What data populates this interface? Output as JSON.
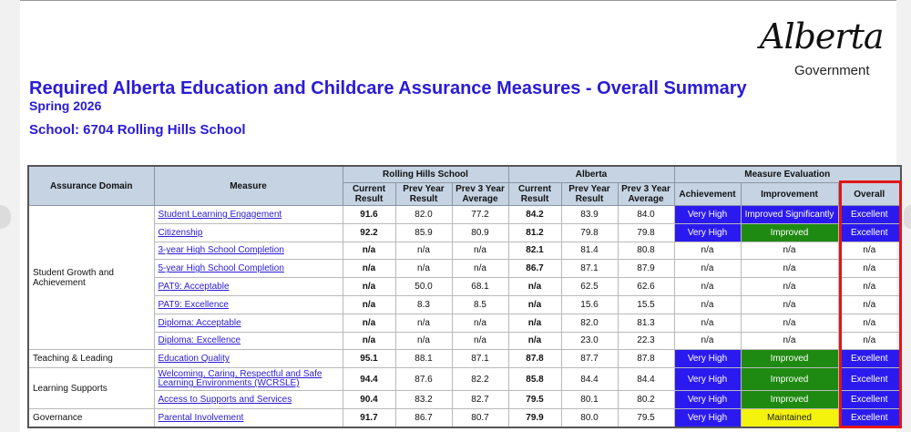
{
  "logo": {
    "script": "Alberta",
    "subtitle": "Government"
  },
  "title": "Required Alberta Education and Childcare Assurance Measures - Overall Summary",
  "subtitle": "Spring 2026",
  "school": "School: 6704 Rolling Hills School",
  "headers": {
    "assurance_domain": "Assurance Domain",
    "measure": "Measure",
    "school_group": "Rolling Hills School",
    "alberta_group": "Alberta",
    "evaluation_group": "Measure Evaluation",
    "current": "Current Result",
    "prev_year": "Prev Year Result",
    "prev_3yr": "Prev 3 Year Average",
    "achievement": "Achievement",
    "improvement": "Improvement",
    "overall": "Overall"
  },
  "domains": {
    "student_growth": "Student Growth and Achievement",
    "teaching": "Teaching & Leading",
    "learning_supports": "Learning Supports",
    "governance": "Governance"
  },
  "rows": [
    {
      "measure": "Student Learning Engagement",
      "s_cur": "91.6",
      "s_prev": "82.0",
      "s_3yr": "77.2",
      "a_cur": "84.2",
      "a_prev": "83.9",
      "a_3yr": "84.0",
      "achievement": "Very High",
      "improvement": "Improved Significantly",
      "overall": "Excellent"
    },
    {
      "measure": "Citizenship",
      "s_cur": "92.2",
      "s_prev": "85.9",
      "s_3yr": "80.9",
      "a_cur": "81.2",
      "a_prev": "79.8",
      "a_3yr": "79.8",
      "achievement": "Very High",
      "improvement": "Improved",
      "overall": "Excellent"
    },
    {
      "measure": "3-year High School Completion",
      "s_cur": "n/a",
      "s_prev": "n/a",
      "s_3yr": "n/a",
      "a_cur": "82.1",
      "a_prev": "81.4",
      "a_3yr": "80.8",
      "achievement": "n/a",
      "improvement": "n/a",
      "overall": "n/a"
    },
    {
      "measure": "5-year High School Completion",
      "s_cur": "n/a",
      "s_prev": "n/a",
      "s_3yr": "n/a",
      "a_cur": "86.7",
      "a_prev": "87.1",
      "a_3yr": "87.9",
      "achievement": "n/a",
      "improvement": "n/a",
      "overall": "n/a"
    },
    {
      "measure": "PAT9: Acceptable",
      "s_cur": "n/a",
      "s_prev": "50.0",
      "s_3yr": "68.1",
      "a_cur": "n/a",
      "a_prev": "62.5",
      "a_3yr": "62.6",
      "achievement": "n/a",
      "improvement": "n/a",
      "overall": "n/a"
    },
    {
      "measure": "PAT9: Excellence",
      "s_cur": "n/a",
      "s_prev": "8.3",
      "s_3yr": "8.5",
      "a_cur": "n/a",
      "a_prev": "15.6",
      "a_3yr": "15.5",
      "achievement": "n/a",
      "improvement": "n/a",
      "overall": "n/a"
    },
    {
      "measure": "Diploma: Acceptable",
      "s_cur": "n/a",
      "s_prev": "n/a",
      "s_3yr": "n/a",
      "a_cur": "n/a",
      "a_prev": "82.0",
      "a_3yr": "81.3",
      "achievement": "n/a",
      "improvement": "n/a",
      "overall": "n/a"
    },
    {
      "measure": "Diploma: Excellence",
      "s_cur": "n/a",
      "s_prev": "n/a",
      "s_3yr": "n/a",
      "a_cur": "n/a",
      "a_prev": "23.0",
      "a_3yr": "22.3",
      "achievement": "n/a",
      "improvement": "n/a",
      "overall": "n/a"
    },
    {
      "measure": "Education Quality",
      "s_cur": "95.1",
      "s_prev": "88.1",
      "s_3yr": "87.1",
      "a_cur": "87.8",
      "a_prev": "87.7",
      "a_3yr": "87.8",
      "achievement": "Very High",
      "improvement": "Improved",
      "overall": "Excellent"
    },
    {
      "measure": "Welcoming, Caring, Respectful and Safe Learning Environments (WCRSLE)",
      "s_cur": "94.4",
      "s_prev": "87.6",
      "s_3yr": "82.2",
      "a_cur": "85.8",
      "a_prev": "84.4",
      "a_3yr": "84.4",
      "achievement": "Very High",
      "improvement": "Improved",
      "overall": "Excellent"
    },
    {
      "measure": "Access to Supports and Services",
      "s_cur": "90.4",
      "s_prev": "83.2",
      "s_3yr": "82.7",
      "a_cur": "79.5",
      "a_prev": "80.1",
      "a_3yr": "80.2",
      "achievement": "Very High",
      "improvement": "Improved",
      "overall": "Excellent"
    },
    {
      "measure": "Parental Involvement",
      "s_cur": "91.7",
      "s_prev": "86.7",
      "s_3yr": "80.7",
      "a_cur": "79.9",
      "a_prev": "80.0",
      "a_3yr": "79.5",
      "achievement": "Very High",
      "improvement": "Maintained",
      "overall": "Excellent"
    }
  ],
  "colors": {
    "title": "#2a1bd6",
    "very_high": "#2b1af0",
    "improved": "#1f8a12",
    "maintained": "#f3f30e",
    "excellent": "#2b1af0",
    "highlight_box": "#e01616"
  }
}
